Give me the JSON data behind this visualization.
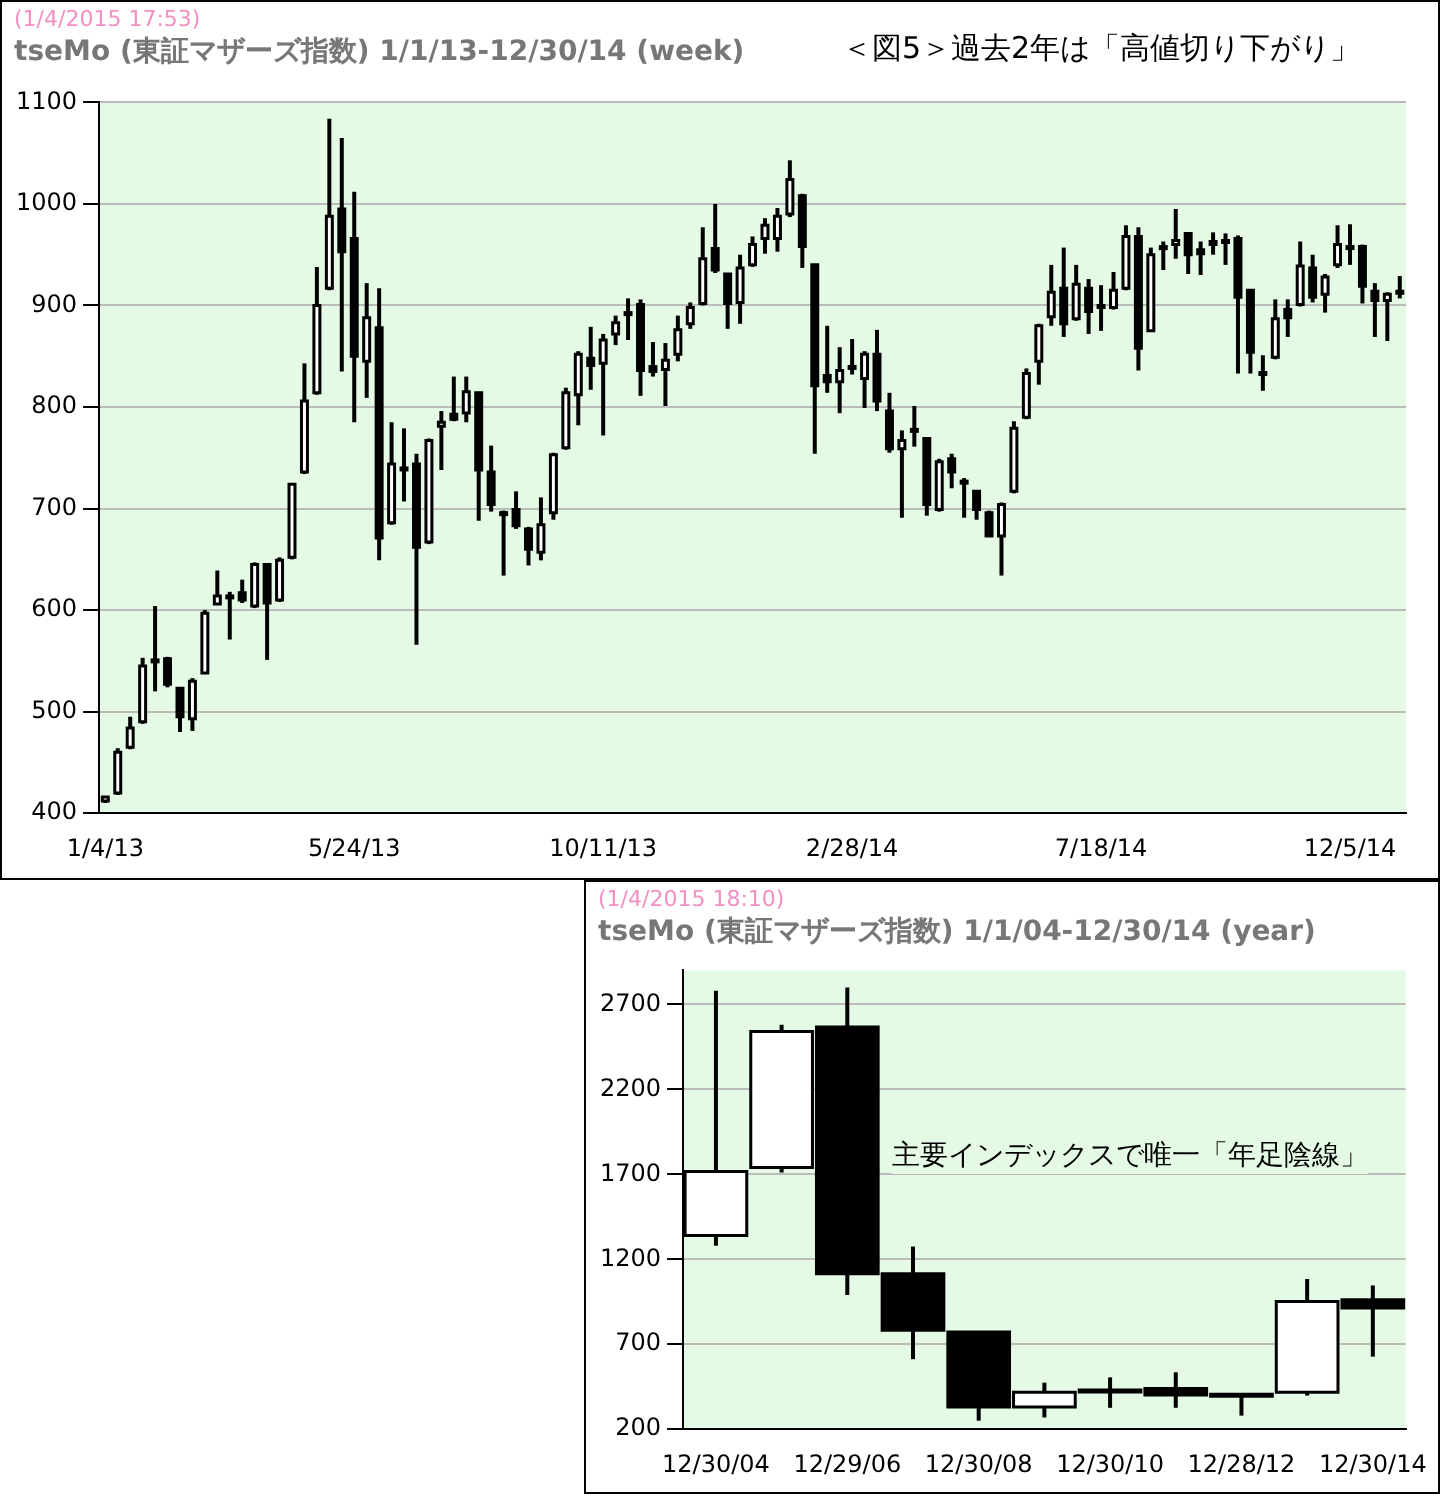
{
  "chart_data": [
    {
      "type": "candlestick",
      "title": "tseMo (東証マザーズ指数) 1/1/13-12/30/14 (week)",
      "annotations": [
        "(1/4/2015 17:53)",
        "＜図5＞過去2年は「高値切り下がり」"
      ],
      "color": "#000000",
      "colors": [
        "#ffffff",
        "#ffffff",
        "#ffffff",
        "#ffffff",
        "#ffffff",
        "#000000",
        "#000000",
        "#ffffff",
        "#ffffff",
        "#ffffff",
        "#ffffff",
        "#000000",
        "#ffffff",
        "#000000",
        "#ffffff",
        "#ffffff",
        "#ffffff",
        "#ffffff",
        "#ffffff",
        "#000000",
        "#000000",
        "#ffffff",
        "#000000",
        "#ffffff",
        "#000000",
        "#000000",
        "#ffffff",
        "#ffffff",
        "#000000",
        "#ffffff",
        "#000000",
        "#000000",
        "#000000",
        "#000000",
        "#000000",
        "#ffffff",
        "#ffffff",
        "#ffffff",
        "#ffffff",
        "#000000",
        "#ffffff",
        "#ffffff",
        "#000000",
        "#000000",
        "#000000",
        "#ffffff",
        "#ffffff",
        "#ffffff",
        "#ffffff",
        "#000000",
        "#000000",
        "#ffffff",
        "#ffffff",
        "#ffffff",
        "#ffffff",
        "#ffffff",
        "#000000",
        "#000000",
        "#000000",
        "#ffffff",
        "#ffffff",
        "#ffffff",
        "#000000",
        "#000000",
        "#ffffff",
        "#000000",
        "#000000",
        "#ffffff",
        "#000000",
        "#000000",
        "#000000",
        "#000000",
        "#ffffff",
        "#ffffff",
        "#ffffff",
        "#ffffff",
        "#ffffff",
        "#000000",
        "#ffffff",
        "#000000",
        "#000000",
        "#ffffff",
        "#ffffff",
        "#000000",
        "#ffffff",
        "#000000",
        "#ffffff",
        "#000000",
        "#000000",
        "#ffffff",
        "#000000",
        "#000000",
        "#000000",
        "#000000",
        "#ffffff",
        "#000000",
        "#ffffff",
        "#000000",
        "#ffffff",
        "#ffffff",
        "#000000",
        "#000000",
        "#000000",
        "#ffffff",
        "#000000"
      ],
      "grid": "y",
      "ylim": [
        400,
        1100
      ],
      "yticks": [
        400,
        500,
        600,
        700,
        800,
        900,
        1000,
        1100
      ],
      "categories": [
        "1/4/13",
        null,
        null,
        null,
        null,
        null,
        null,
        null,
        null,
        null,
        null,
        null,
        null,
        null,
        null,
        null,
        null,
        null,
        null,
        null,
        "5/24/13",
        null,
        null,
        null,
        null,
        null,
        null,
        null,
        null,
        null,
        null,
        null,
        null,
        null,
        null,
        null,
        null,
        null,
        null,
        null,
        "10/11/13",
        null,
        null,
        null,
        null,
        null,
        null,
        null,
        null,
        null,
        null,
        null,
        null,
        null,
        null,
        null,
        null,
        null,
        null,
        null,
        "2/28/14",
        null,
        null,
        null,
        null,
        null,
        null,
        null,
        null,
        null,
        null,
        null,
        null,
        null,
        null,
        null,
        null,
        null,
        null,
        null,
        "7/18/14",
        null,
        null,
        null,
        null,
        null,
        null,
        null,
        null,
        null,
        null,
        null,
        null,
        null,
        null,
        null,
        null,
        null,
        null,
        null,
        "12/5/14",
        null,
        null,
        null,
        null
      ],
      "ohlc": [
        [
          412,
          416,
          410,
          416
        ],
        [
          420,
          464,
          418,
          460
        ],
        [
          465,
          495,
          463,
          484
        ],
        [
          490,
          553,
          488,
          545
        ],
        [
          550,
          604,
          520,
          551
        ],
        [
          552,
          554,
          524,
          527
        ],
        [
          523,
          523,
          480,
          495
        ],
        [
          493,
          533,
          481,
          530
        ],
        [
          538,
          600,
          537,
          597
        ],
        [
          606,
          639,
          605,
          614
        ],
        [
          613,
          618,
          571,
          614
        ],
        [
          617,
          630,
          607,
          610
        ],
        [
          604,
          647,
          602,
          645
        ],
        [
          645,
          645,
          551,
          607
        ],
        [
          610,
          652,
          608,
          649
        ],
        [
          652,
          725,
          650,
          724
        ],
        [
          736,
          843,
          734,
          806
        ],
        [
          814,
          938,
          812,
          900
        ],
        [
          917,
          1084,
          915,
          988
        ],
        [
          995,
          1065,
          835,
          953
        ],
        [
          966,
          1012,
          785,
          850
        ],
        [
          845,
          922,
          809,
          888
        ],
        [
          878,
          917,
          649,
          671
        ],
        [
          686,
          785,
          684,
          744
        ],
        [
          740,
          779,
          707,
          740
        ],
        [
          744,
          754,
          566,
          662
        ],
        [
          667,
          769,
          665,
          767
        ],
        [
          781,
          796,
          738,
          785
        ],
        [
          793,
          830,
          786,
          788
        ],
        [
          794,
          830,
          785,
          815
        ],
        [
          814,
          815,
          688,
          738
        ],
        [
          736,
          762,
          697,
          704
        ],
        [
          696,
          698,
          634,
          696
        ],
        [
          699,
          717,
          680,
          683
        ],
        [
          680,
          682,
          644,
          660
        ],
        [
          657,
          711,
          649,
          684
        ],
        [
          696,
          755,
          689,
          753
        ],
        [
          760,
          819,
          758,
          814
        ],
        [
          812,
          855,
          782,
          852
        ],
        [
          848,
          879,
          817,
          841
        ],
        [
          843,
          872,
          772,
          866
        ],
        [
          872,
          890,
          861,
          883
        ],
        [
          893,
          907,
          866,
          893
        ],
        [
          901,
          906,
          811,
          836
        ],
        [
          840,
          864,
          830,
          835
        ],
        [
          837,
          863,
          801,
          846
        ],
        [
          852,
          890,
          845,
          876
        ],
        [
          882,
          903,
          877,
          898
        ],
        [
          902,
          977,
          900,
          946
        ],
        [
          956,
          1000,
          932,
          935
        ],
        [
          931,
          931,
          877,
          902
        ],
        [
          903,
          950,
          882,
          937
        ],
        [
          940,
          968,
          938,
          960
        ],
        [
          966,
          986,
          951,
          979
        ],
        [
          966,
          996,
          953,
          988
        ],
        [
          990,
          1043,
          987,
          1024
        ],
        [
          1008,
          1010,
          937,
          958
        ],
        [
          940,
          940,
          754,
          821
        ],
        [
          831,
          880,
          814,
          825
        ],
        [
          825,
          859,
          794,
          836
        ],
        [
          839,
          867,
          832,
          840
        ],
        [
          828,
          855,
          799,
          852
        ],
        [
          852,
          876,
          796,
          806
        ],
        [
          796,
          814,
          755,
          759
        ],
        [
          759,
          777,
          691,
          767
        ],
        [
          778,
          801,
          761,
          778
        ],
        [
          769,
          769,
          693,
          704
        ],
        [
          699,
          749,
          697,
          746
        ],
        [
          749,
          754,
          720,
          736
        ],
        [
          727,
          730,
          691,
          727
        ],
        [
          717,
          717,
          689,
          699
        ],
        [
          696,
          698,
          672,
          673
        ],
        [
          673,
          706,
          634,
          704
        ],
        [
          717,
          786,
          715,
          779
        ],
        [
          790,
          838,
          788,
          833
        ],
        [
          845,
          882,
          822,
          880
        ],
        [
          889,
          940,
          880,
          913
        ],
        [
          917,
          957,
          869,
          882
        ],
        [
          887,
          940,
          885,
          921
        ],
        [
          917,
          926,
          872,
          894
        ],
        [
          900,
          920,
          875,
          898
        ],
        [
          898,
          933,
          896,
          915
        ],
        [
          917,
          979,
          915,
          968
        ],
        [
          968,
          977,
          836,
          858
        ],
        [
          875,
          957,
          874,
          950
        ],
        [
          958,
          963,
          935,
          956
        ],
        [
          960,
          995,
          946,
          964
        ],
        [
          971,
          971,
          931,
          950
        ],
        [
          955,
          963,
          930,
          951
        ],
        [
          960,
          972,
          950,
          963
        ],
        [
          964,
          971,
          940,
          964
        ],
        [
          966,
          969,
          833,
          908
        ],
        [
          915,
          915,
          833,
          854
        ],
        [
          834,
          851,
          816,
          834
        ],
        [
          849,
          906,
          847,
          887
        ],
        [
          896,
          906,
          869,
          888
        ],
        [
          901,
          963,
          899,
          939
        ],
        [
          937,
          950,
          903,
          908
        ],
        [
          911,
          931,
          893,
          928
        ],
        [
          940,
          979,
          937,
          960
        ],
        [
          958,
          980,
          940,
          958
        ],
        [
          958,
          960,
          902,
          919
        ],
        [
          914,
          922,
          869,
          905
        ],
        [
          905,
          913,
          865,
          911
        ],
        [
          914,
          929,
          907,
          914
        ]
      ]
    },
    {
      "type": "candlestick",
      "title": "tseMo (東証マザーズ指数) 1/1/04-12/30/14 (year)",
      "annotations": [
        "(1/4/2015 18:10)",
        "主要インデックスで唯一「年足陰線」"
      ],
      "color": "#000000",
      "colors": [
        "#ffffff",
        "#ffffff",
        "#000000",
        "#000000",
        "#000000",
        "#ffffff",
        "#ffffff",
        "#000000",
        "#000000",
        "#ffffff",
        "#000000"
      ],
      "grid": "y",
      "ylim": [
        200,
        2900
      ],
      "yticks": [
        200,
        700,
        1200,
        1700,
        2200,
        2700
      ],
      "categories": [
        "12/30/04",
        null,
        "12/29/06",
        null,
        "12/30/08",
        null,
        "12/30/10",
        null,
        "12/28/12",
        null,
        "12/30/14"
      ],
      "ohlc": [
        [
          1340,
          2780,
          1280,
          1717
        ],
        [
          1740,
          2580,
          1710,
          2540
        ],
        [
          2567,
          2800,
          990,
          1115
        ],
        [
          1115,
          1275,
          612,
          783
        ],
        [
          772,
          772,
          250,
          330
        ],
        [
          330,
          474,
          269,
          417
        ],
        [
          420,
          505,
          326,
          430
        ],
        [
          440,
          535,
          326,
          402
        ],
        [
          405,
          405,
          280,
          400
        ],
        [
          417,
          1084,
          398,
          951
        ],
        [
          962,
          1046,
          627,
          913
        ]
      ]
    }
  ]
}
